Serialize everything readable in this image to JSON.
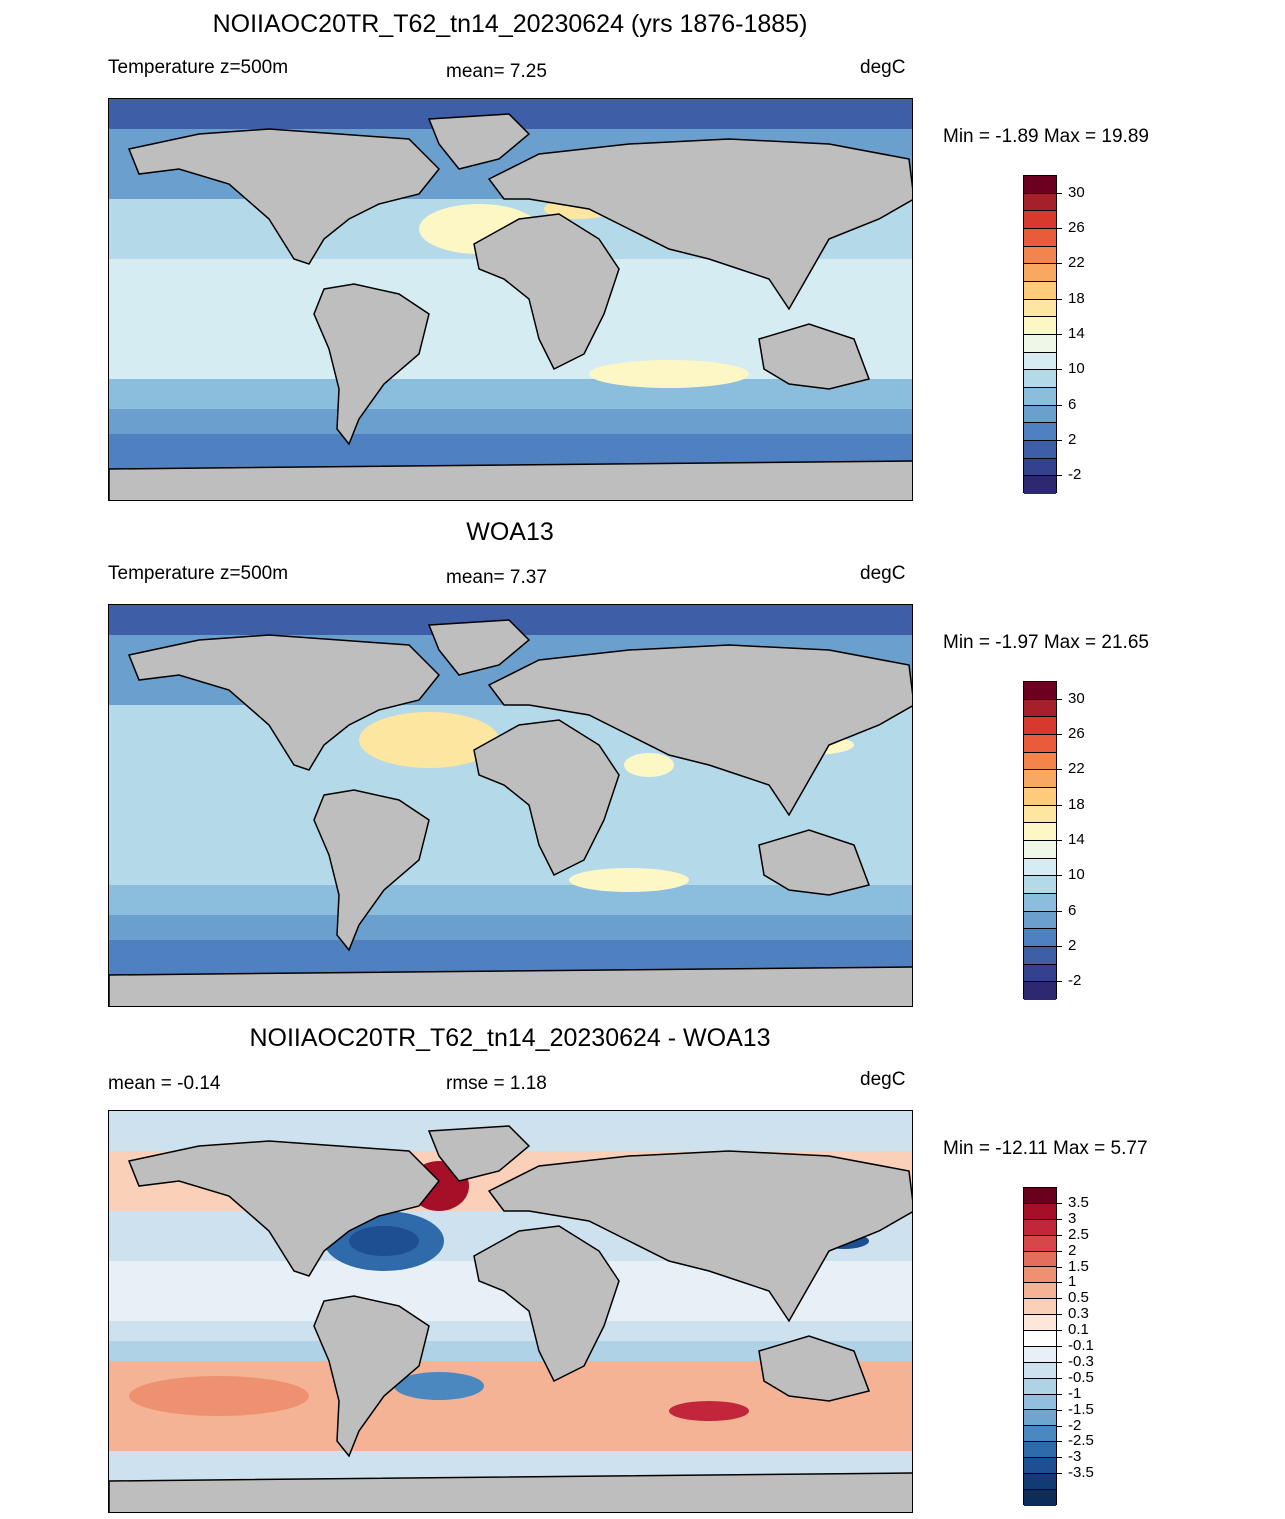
{
  "panels": [
    {
      "title": "NOIIAOC20TR_T62_tn14_20230624 (yrs 1876-1885)",
      "left_label": "Temperature z=500m",
      "center_label": "mean=   7.25",
      "right_label": "degC",
      "minmax": "Min =  -1.89 Max =  19.89",
      "colorbar_colors": [
        "#6b0020",
        "#a6202b",
        "#d73a2c",
        "#ea5b3a",
        "#f2844c",
        "#f8a860",
        "#fccc7a",
        "#fde6a0",
        "#fdf7c6",
        "#eef7e8",
        "#d6ecf3",
        "#b4d9e8",
        "#8bbedc",
        "#6a9fce",
        "#4f81c0",
        "#3e5ea8",
        "#33428f",
        "#2b2a70"
      ],
      "colorbar_ticks": [
        "30",
        "26",
        "22",
        "18",
        "14",
        "10",
        "6",
        "2",
        "-2"
      ]
    },
    {
      "title": "WOA13",
      "left_label": "Temperature z=500m",
      "center_label": "mean=   7.37",
      "right_label": "degC",
      "minmax": "Min =  -1.97 Max =  21.65",
      "colorbar_colors": [
        "#6b0020",
        "#a6202b",
        "#d73a2c",
        "#ea5b3a",
        "#f2844c",
        "#f8a860",
        "#fccc7a",
        "#fde6a0",
        "#fdf7c6",
        "#eef7e8",
        "#d6ecf3",
        "#b4d9e8",
        "#8bbedc",
        "#6a9fce",
        "#4f81c0",
        "#3e5ea8",
        "#33428f",
        "#2b2a70"
      ],
      "colorbar_ticks": [
        "30",
        "26",
        "22",
        "18",
        "14",
        "10",
        "6",
        "2",
        "-2"
      ]
    },
    {
      "title": "NOIIAOC20TR_T62_tn14_20230624 - WOA13",
      "left_label": "mean =  -0.14",
      "center_label": "rmse =   1.18",
      "right_label": "degC",
      "minmax": "Min = -12.11 Max =   5.77",
      "colorbar_colors": [
        "#67001f",
        "#a50f28",
        "#c2263a",
        "#d6464a",
        "#e36e5b",
        "#ee9170",
        "#f5b396",
        "#fad0b8",
        "#fde7da",
        "#ffffff",
        "#e6f0f6",
        "#cde2ee",
        "#b0d2e6",
        "#91bfdc",
        "#6ea6cf",
        "#4b88bf",
        "#2f6aab",
        "#1d4f92",
        "#123a73",
        "#0c2c5a"
      ],
      "colorbar_ticks": [
        "3.5",
        "3",
        "2.5",
        "2",
        "1.5",
        "1",
        "0.5",
        "0.3",
        "0.1",
        "-0.1",
        "-0.3",
        "-0.5",
        "-1",
        "-1.5",
        "-2",
        "-2.5",
        "-3",
        "-3.5"
      ]
    }
  ]
}
